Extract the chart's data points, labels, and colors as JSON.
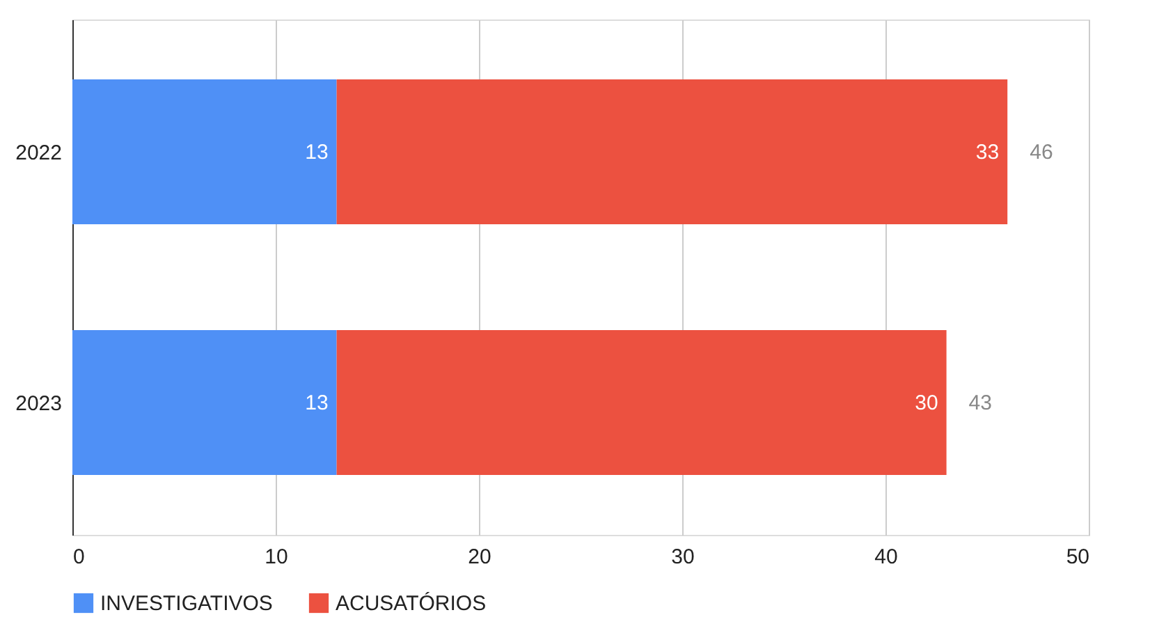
{
  "chart_data": {
    "type": "bar",
    "orientation": "horizontal",
    "stacked": true,
    "categories": [
      "2022",
      "2023"
    ],
    "series": [
      {
        "name": "INVESTIGATIVOS",
        "color": "#4f90f6",
        "values": [
          13,
          13
        ]
      },
      {
        "name": "ACUSATÓRIOS",
        "color": "#ec5140",
        "values": [
          33,
          30
        ]
      }
    ],
    "xlim": [
      0,
      50
    ],
    "xticks": [
      0,
      10,
      20,
      30,
      40,
      50
    ],
    "grid": "x",
    "legend": "bottom",
    "data_labels": true,
    "totals": [
      "46",
      "43"
    ]
  }
}
